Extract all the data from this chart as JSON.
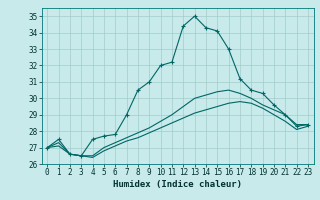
{
  "xlabel": "Humidex (Indice chaleur)",
  "ylabel": "",
  "background_color": "#c8eaea",
  "grid_color": "#a0cccc",
  "line_color": "#006666",
  "xlim": [
    -0.5,
    23.5
  ],
  "ylim": [
    26,
    35.5
  ],
  "xticks": [
    0,
    1,
    2,
    3,
    4,
    5,
    6,
    7,
    8,
    9,
    10,
    11,
    12,
    13,
    14,
    15,
    16,
    17,
    18,
    19,
    20,
    21,
    22,
    23
  ],
  "yticks": [
    26,
    27,
    28,
    29,
    30,
    31,
    32,
    33,
    34,
    35
  ],
  "series": [
    {
      "x": [
        0,
        1,
        2,
        3,
        4,
        5,
        6,
        7,
        8,
        9,
        10,
        11,
        12,
        13,
        14,
        15,
        16,
        17,
        18,
        19,
        20,
        21,
        22,
        23
      ],
      "y": [
        27.0,
        27.5,
        26.6,
        26.5,
        27.5,
        27.7,
        27.8,
        29.0,
        30.5,
        31.0,
        32.0,
        32.2,
        34.4,
        35.0,
        34.3,
        34.1,
        33.0,
        31.2,
        30.5,
        30.3,
        29.6,
        29.0,
        28.3,
        28.4
      ],
      "marker": "+"
    },
    {
      "x": [
        0,
        1,
        2,
        3,
        4,
        5,
        6,
        7,
        8,
        9,
        10,
        11,
        12,
        13,
        14,
        15,
        16,
        17,
        18,
        19,
        20,
        21,
        22,
        23
      ],
      "y": [
        27.0,
        27.3,
        26.6,
        26.5,
        26.5,
        27.0,
        27.3,
        27.6,
        27.9,
        28.2,
        28.6,
        29.0,
        29.5,
        30.0,
        30.2,
        30.4,
        30.5,
        30.3,
        30.0,
        29.6,
        29.3,
        29.0,
        28.4,
        28.4
      ],
      "marker": null
    },
    {
      "x": [
        0,
        1,
        2,
        3,
        4,
        5,
        6,
        7,
        8,
        9,
        10,
        11,
        12,
        13,
        14,
        15,
        16,
        17,
        18,
        19,
        20,
        21,
        22,
        23
      ],
      "y": [
        27.0,
        27.1,
        26.6,
        26.5,
        26.4,
        26.8,
        27.1,
        27.4,
        27.6,
        27.9,
        28.2,
        28.5,
        28.8,
        29.1,
        29.3,
        29.5,
        29.7,
        29.8,
        29.7,
        29.4,
        29.0,
        28.6,
        28.1,
        28.3
      ],
      "marker": null
    }
  ]
}
